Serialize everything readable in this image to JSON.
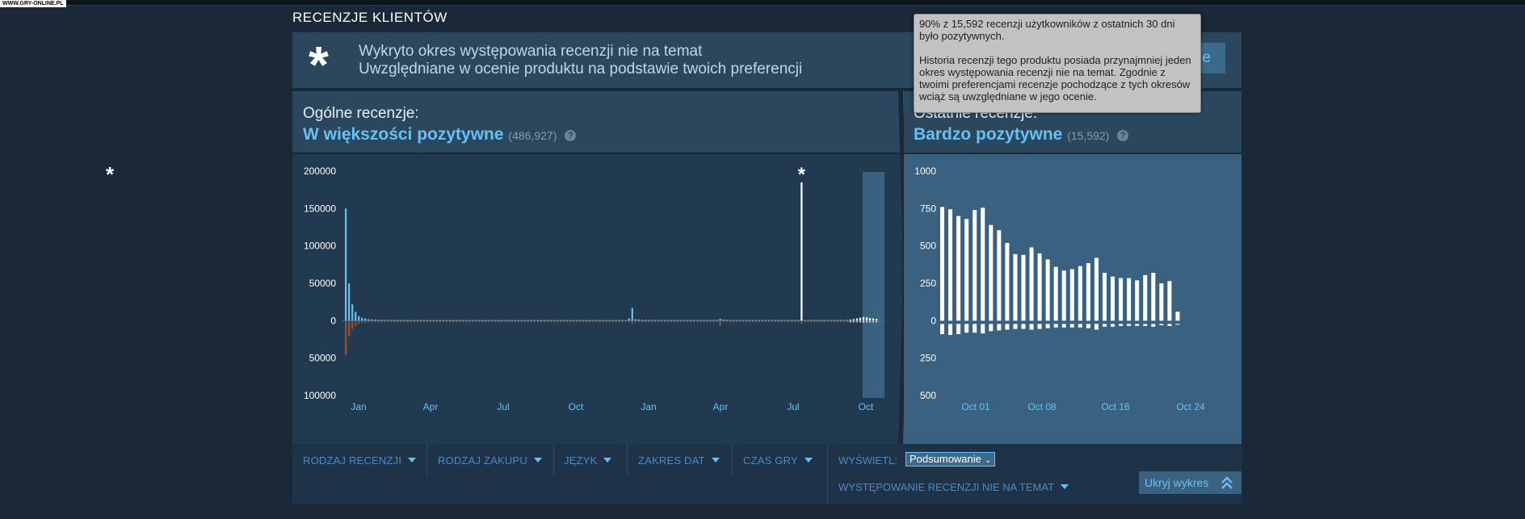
{
  "watermark": "WWW.GRY-ONLINE.PL",
  "side_asterisk": "*",
  "section_title": "RECENZJE KLIENTÓW",
  "banner": {
    "asterisk": "*",
    "line1": "Wykryto okres występowania recenzji nie na temat",
    "line2": "Uwzględniane w ocenie produktu na podstawie twoich preferencji",
    "button_label": "e"
  },
  "overall": {
    "label": "Ogólne recenzje:",
    "score": "W większości pozytywne",
    "count": "(486,927)",
    "help": "?"
  },
  "recent": {
    "label": "Ostatnie recenzje:",
    "score": "Bardzo pozytywne",
    "count": "(15,592)",
    "help": "?"
  },
  "tooltip": {
    "p1": "90% z 15,592 recenzji użytkowników z ostatnich 30 dni było pozytywnych.",
    "p2": "Historia recenzji tego produktu posiada przynajmniej jeden okres występowania recenzji nie na temat. Zgodnie z twoimi preferencjami recenzje pochodzące z tych okresów wciąż są uwzględniane w jego ocenie."
  },
  "filters": {
    "review_type": "RODZAJ RECENZJI",
    "purchase_type": "RODZAJ ZAKUPU",
    "language": "JĘZYK",
    "date_range": "ZAKRES DAT",
    "playtime": "CZAS GRY",
    "display_label": "WYŚWIETL:",
    "display_value": "Podsumowanie",
    "offtopic": "WYSTĘPOWANIE RECENZJI NIE NA TEMAT",
    "hide_chart": "Ukryj wykres"
  },
  "colors": {
    "positive": "#66c0f4",
    "negative": "#a34c25",
    "recent_bar": "#ffffff",
    "accent": "#67c1f5"
  },
  "icons": {
    "caret": "caret-down-icon",
    "hide": "double-chevron-up-icon",
    "help": "help-circle-icon"
  },
  "chart_data": [
    {
      "type": "bar",
      "ylim": [
        -100000,
        200000
      ],
      "y_ticks": [
        200000,
        150000,
        100000,
        50000,
        0,
        -50000,
        -100000
      ],
      "y_tick_labels": [
        "200000",
        "150000",
        "100000",
        "50000",
        "0",
        "50000",
        "100000"
      ],
      "x_tick_labels": [
        "Jan",
        "Apr",
        "Jul",
        "Oct",
        "Jan",
        "Apr",
        "Jul",
        "Oct"
      ],
      "offtopic_marker": "*",
      "series": [
        {
          "values": [
            150000,
            50000,
            22000,
            12000,
            6000,
            4000,
            3000,
            2000,
            1800,
            1500,
            1300,
            1200,
            1100,
            1000,
            1000,
            900,
            900,
            900,
            850,
            800,
            800,
            800,
            800,
            800,
            800,
            800,
            800,
            800,
            800,
            800,
            800,
            800,
            800,
            800,
            800,
            900,
            900,
            900,
            900,
            900,
            900,
            900,
            900,
            900,
            900,
            900,
            900,
            900,
            900,
            900,
            900,
            900,
            900,
            900,
            900,
            900,
            900,
            900,
            900,
            900,
            900,
            900,
            900,
            900,
            900,
            900,
            900,
            900,
            900,
            900,
            900,
            900,
            900,
            900,
            900,
            900,
            900,
            900,
            900,
            900,
            900,
            900,
            900,
            900,
            900,
            900,
            900,
            3000,
            17000,
            2000,
            1500,
            1200,
            1200,
            1100,
            1100,
            1000,
            1000,
            1000,
            1000,
            1000,
            1000,
            1000,
            1000,
            1000,
            1000,
            1000,
            1000,
            1000,
            1000,
            1000,
            1000,
            1000,
            1000,
            1000,
            1000,
            2500,
            1500,
            1200,
            1000,
            1000,
            1000,
            1000,
            1000,
            1000,
            1000,
            1000,
            1000,
            1000,
            1000,
            1000,
            1000,
            1000,
            1000,
            1000,
            1000,
            1000,
            1000,
            1000,
            1000,
            1000,
            185000,
            1000,
            1000,
            1000,
            1000,
            1000,
            1000,
            1000,
            1000,
            1000,
            1000,
            1000,
            1000,
            1000,
            1200,
            1500,
            2000,
            3000,
            4000,
            5000,
            4500,
            3500,
            3000,
            2500
          ]
        },
        {
          "values": [
            -45000,
            -20000,
            -10000,
            -6000,
            -3000,
            -2000,
            -1500,
            -1000,
            -800,
            -700,
            -600,
            -500,
            -500,
            -500,
            -500,
            -500,
            -400,
            -400,
            -400,
            -400,
            -400,
            -400,
            -400,
            -400,
            -400,
            -400,
            -400,
            -400,
            -400,
            -400,
            -400,
            -400,
            -400,
            -400,
            -400,
            -400,
            -400,
            -400,
            -400,
            -400,
            -400,
            -400,
            -400,
            -400,
            -400,
            -400,
            -400,
            -400,
            -400,
            -400,
            -400,
            -400,
            -400,
            -400,
            -400,
            -400,
            -400,
            -400,
            -400,
            -400,
            -400,
            -400,
            -400,
            -400,
            -400,
            -400,
            -400,
            -400,
            -400,
            -400,
            -400,
            -400,
            -400,
            -400,
            -400,
            -400,
            -400,
            -400,
            -400,
            -400,
            -400,
            -400,
            -400,
            -400,
            -400,
            -400,
            -400,
            -1500,
            -3000,
            -800,
            -600,
            -500,
            -500,
            -500,
            -500,
            -500,
            -500,
            -500,
            -500,
            -500,
            -500,
            -500,
            -500,
            -500,
            -500,
            -500,
            -500,
            -500,
            -500,
            -500,
            -500,
            -500,
            -500,
            -500,
            -500,
            -6000,
            -1000,
            -600,
            -500,
            -500,
            -500,
            -500,
            -500,
            -500,
            -500,
            -500,
            -500,
            -500,
            -500,
            -500,
            -500,
            -500,
            -500,
            -500,
            -500,
            -500,
            -500,
            -500,
            -500,
            -500,
            -3000,
            -500,
            -500,
            -500,
            -500,
            -500,
            -500,
            -500,
            -500,
            -500,
            -500,
            -500,
            -500,
            -500,
            -600,
            -700,
            -800,
            -1000,
            -1200,
            -1500,
            -1300,
            -1100,
            -1000,
            -900
          ]
        }
      ]
    },
    {
      "type": "bar",
      "ylim": [
        -500,
        1000
      ],
      "y_ticks": [
        1000,
        750,
        500,
        250,
        0,
        -250,
        -500
      ],
      "y_tick_labels": [
        "1000",
        "750",
        "500",
        "250",
        "0",
        "250",
        "500"
      ],
      "x_tick_labels": [
        "Oct 01",
        "Oct 08",
        "Oct 16",
        "Oct 24"
      ],
      "series": [
        {
          "values": [
            760,
            745,
            700,
            680,
            740,
            755,
            640,
            605,
            520,
            445,
            440,
            490,
            450,
            410,
            360,
            335,
            345,
            365,
            385,
            420,
            320,
            295,
            285,
            285,
            270,
            305,
            320,
            250,
            265,
            60
          ]
        },
        {
          "values": [
            -90,
            -95,
            -90,
            -80,
            -80,
            -85,
            -70,
            -65,
            -60,
            -55,
            -55,
            -60,
            -55,
            -50,
            -45,
            -45,
            -45,
            -45,
            -50,
            -60,
            -40,
            -40,
            -35,
            -35,
            -35,
            -35,
            -40,
            -30,
            -35,
            -5
          ]
        }
      ]
    }
  ]
}
